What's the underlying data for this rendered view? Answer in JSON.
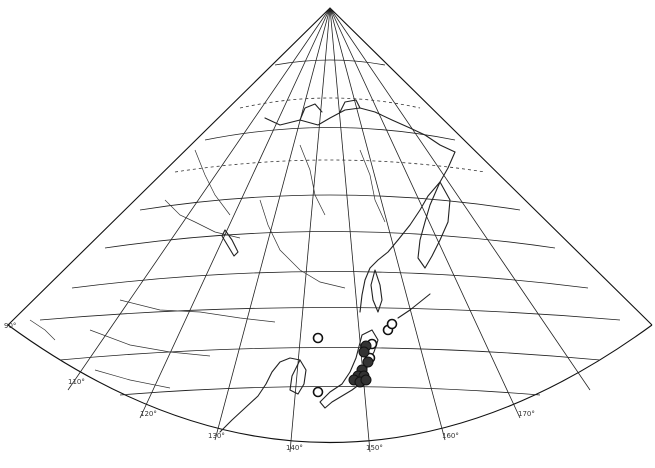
{
  "map": {
    "longitude_labels": [
      "110°",
      "120°",
      "130°",
      "140°",
      "150°",
      "160°",
      "170°"
    ],
    "corner_label": "90°",
    "legend": {
      "open_symbol": "open-circle",
      "filled_symbol": "filled-circle"
    },
    "sites": {
      "open": [
        {
          "id": "sakhalin-south-1"
        },
        {
          "id": "sakhalin-south-2"
        },
        {
          "id": "hokkaido-east"
        },
        {
          "id": "manchuria-inland"
        },
        {
          "id": "honshu-north"
        },
        {
          "id": "korea-south"
        }
      ],
      "filled": [
        {
          "id": "hokkaido-1"
        },
        {
          "id": "hokkaido-2"
        },
        {
          "id": "tohoku-1"
        },
        {
          "id": "tohoku-2"
        },
        {
          "id": "kanto-1"
        },
        {
          "id": "kanto-2"
        },
        {
          "id": "chubu-1"
        },
        {
          "id": "chubu-2"
        },
        {
          "id": "kinki-1"
        }
      ]
    },
    "colors": {
      "ink": "#222222",
      "paper": "#ffffff"
    }
  }
}
